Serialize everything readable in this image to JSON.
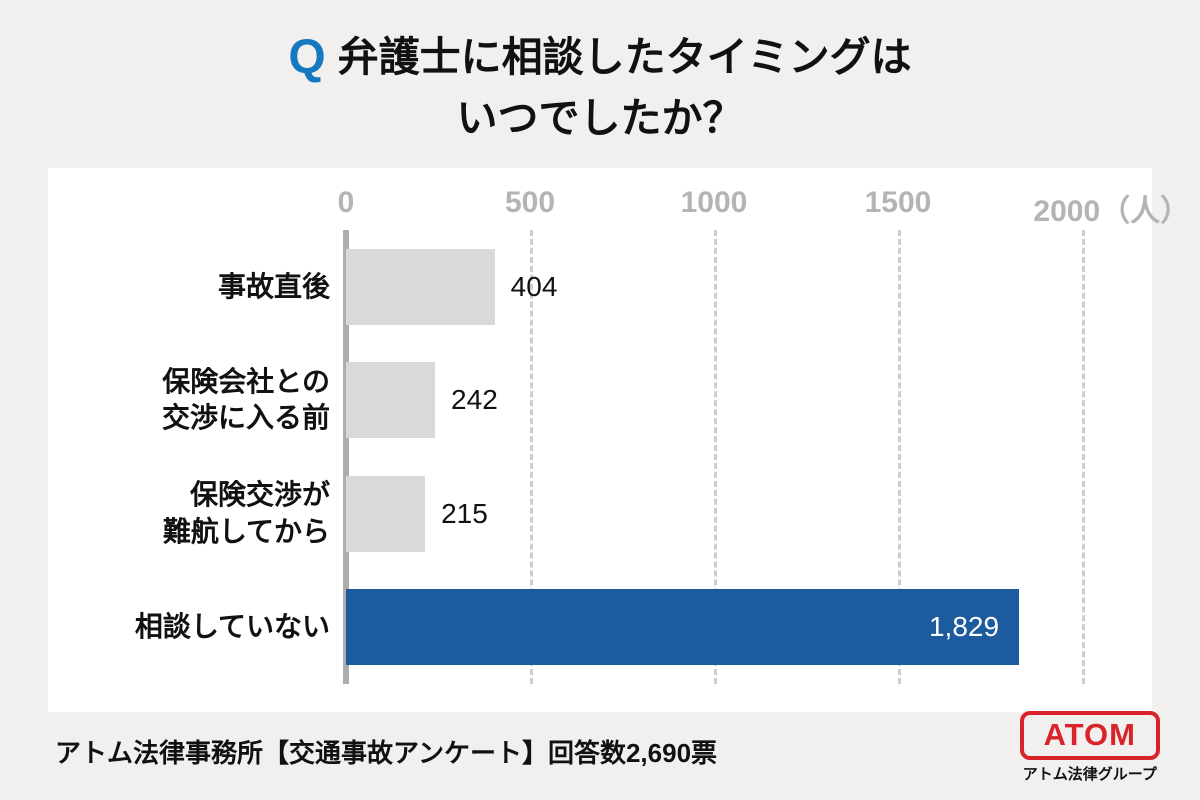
{
  "title": {
    "q": "Q",
    "line1": "弁護士に相談したタイミングは",
    "line2": "いつでしたか？"
  },
  "chart_data": {
    "type": "bar",
    "orientation": "horizontal",
    "title": "弁護士に相談したタイミングはいつでしたか？",
    "categories": [
      "事故直後",
      "保険会社との\n交渉に入る前",
      "保険交渉が\n難航してから",
      "相談していない"
    ],
    "values": [
      404,
      242,
      215,
      1829
    ],
    "value_labels": [
      "404",
      "242",
      "215",
      "1,829"
    ],
    "xlim": [
      0,
      2000
    ],
    "xticks": [
      0,
      500,
      1000,
      1500,
      2000
    ],
    "unit": "（人）",
    "highlight_index": 3,
    "grid": "dashed-vertical",
    "legend": "none",
    "colors": {
      "bar_default": "#d9d9d9",
      "bar_highlight": "#1c5b9e",
      "tick_text": "#b5b4b2",
      "gridline": "#cfcecc",
      "zero_axis": "#aeadab",
      "accent_q": "#1679c0"
    }
  },
  "footer": {
    "source": "アトム法律事務所【交通事故アンケート】回答数2,690票",
    "logo_text": "ATOM",
    "logo_subtext": "アトム法律グループ"
  }
}
